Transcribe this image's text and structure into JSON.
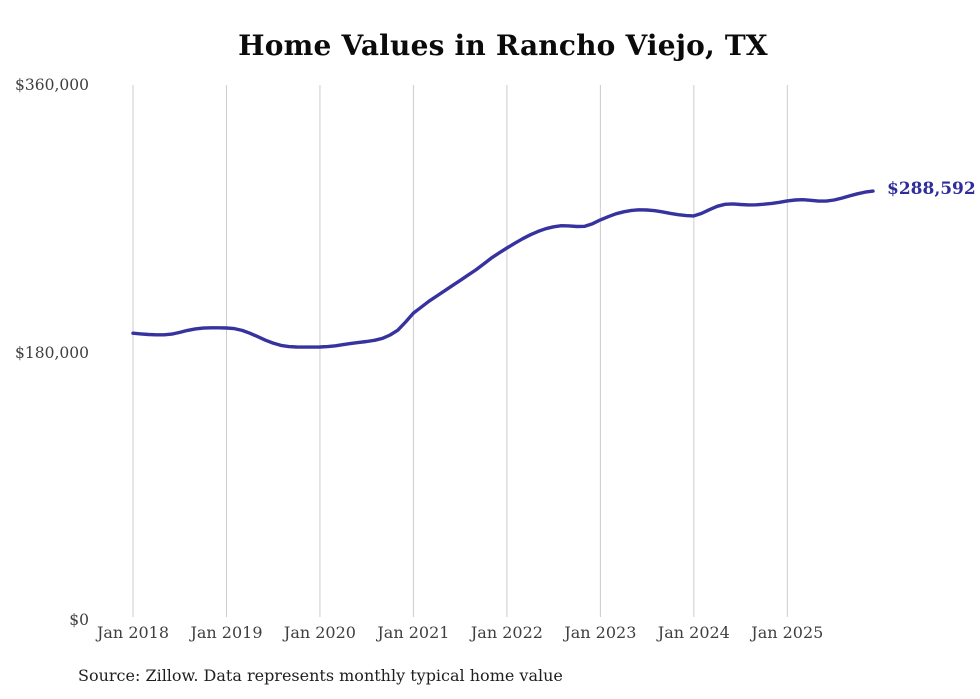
{
  "title": "Home Values in Rancho Viejo, TX",
  "source_note": "Source: Zillow. Data represents monthly typical home value",
  "colors": {
    "line": "#37339e",
    "end_label": "#302c9c",
    "gridline": "#cccccc",
    "tick_label": "#3f3f3f",
    "title": "#0b0b0b",
    "source": "#1f1f1f",
    "background": "#ffffff"
  },
  "chart_data": {
    "type": "line",
    "title": "Home Values in Rancho Viejo, TX",
    "xlabel": "",
    "ylabel": "",
    "ylim": [
      0,
      360000
    ],
    "grid": "vertical-only",
    "legend": "none",
    "frequency": "monthly",
    "x_start": "Jan 2018",
    "x_end": "Dec 2025",
    "end_value_label": "$288,592",
    "final_value": 288592,
    "y_ticks": [
      {
        "label": "$0",
        "value": 0
      },
      {
        "label": "$180,000",
        "value": 180000
      },
      {
        "label": "$360,000",
        "value": 360000
      }
    ],
    "x_ticks": [
      {
        "label": "Jan 2018",
        "month_index": 0
      },
      {
        "label": "Jan 2019",
        "month_index": 12
      },
      {
        "label": "Jan 2020",
        "month_index": 24
      },
      {
        "label": "Jan 2021",
        "month_index": 36
      },
      {
        "label": "Jan 2022",
        "month_index": 48
      },
      {
        "label": "Jan 2023",
        "month_index": 60
      },
      {
        "label": "Jan 2024",
        "month_index": 72
      },
      {
        "label": "Jan 2025",
        "month_index": 84
      }
    ],
    "series": [
      {
        "name": "Typical home value",
        "values": [
          193000,
          192500,
          192100,
          191900,
          191900,
          192400,
          193500,
          194900,
          195900,
          196400,
          196600,
          196600,
          196500,
          196100,
          194900,
          193000,
          190700,
          188300,
          186300,
          184800,
          184000,
          183700,
          183600,
          183600,
          183700,
          184000,
          184500,
          185300,
          186100,
          186800,
          187400,
          188200,
          189500,
          191800,
          195000,
          200500,
          206500,
          210500,
          214500,
          218000,
          221500,
          225000,
          228500,
          232000,
          235500,
          239500,
          243500,
          247000,
          250300,
          253500,
          256500,
          259200,
          261500,
          263300,
          264600,
          265300,
          265200,
          264800,
          264900,
          266700,
          269200,
          271400,
          273300,
          274700,
          275600,
          276000,
          275900,
          275400,
          274600,
          273600,
          272700,
          272100,
          271900,
          273600,
          276100,
          278400,
          279700,
          280000,
          279600,
          279300,
          279400,
          279800,
          280300,
          281100,
          282000,
          282600,
          282800,
          282400,
          281900,
          281900,
          282600,
          283900,
          285400,
          286800,
          287900,
          288592
        ]
      }
    ]
  }
}
